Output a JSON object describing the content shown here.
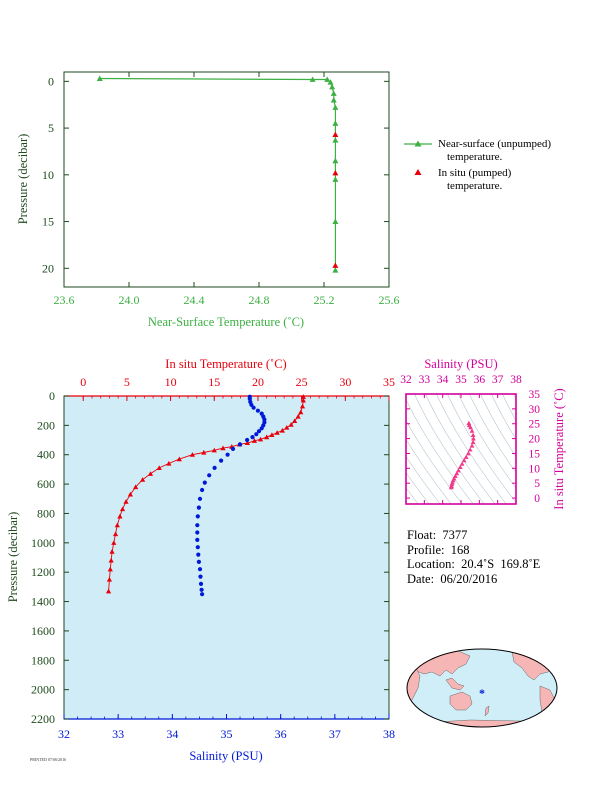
{
  "colors": {
    "green": "#3cb043",
    "red": "#e8000b",
    "blue": "#0018d8",
    "magenta": "#d4009a",
    "pink": "#f03a8a",
    "axis_dark": "#1e4a1e",
    "plot_bg": "#d0ecf6",
    "land": "#f7b6b6",
    "ocean": "#cfeef8"
  },
  "chart_data": [
    {
      "type": "line",
      "xlabel": "Near-Surface Temperature (˚C)",
      "ylabel": "Pressure (decibar)",
      "xlim": [
        23.6,
        25.6
      ],
      "ylim": [
        22,
        -1
      ],
      "xticks": [
        "23.6",
        "24.0",
        "24.4",
        "24.8",
        "25.2",
        "25.6"
      ],
      "yticks": [
        "0",
        "5",
        "10",
        "15",
        "20"
      ],
      "legend": [
        "Near-surface (unpumped) temperature.",
        "In situ (pumped) temperature."
      ],
      "series": [
        {
          "name": "Near-surface (unpumped) temperature.",
          "x": [
            23.82,
            25.13,
            25.22,
            25.24,
            25.25,
            25.26,
            25.26,
            25.27,
            25.27,
            25.27,
            25.27,
            25.27,
            25.27,
            25.27
          ],
          "y": [
            -0.3,
            -0.2,
            -0.2,
            0.1,
            0.6,
            1.3,
            2.0,
            2.8,
            4.5,
            6.3,
            8.5,
            10.5,
            15.0,
            20.2
          ]
        },
        {
          "name": "In situ (pumped) temperature.",
          "x": [
            25.27,
            25.27,
            25.27
          ],
          "y": [
            5.7,
            9.8,
            19.7
          ]
        }
      ]
    },
    {
      "type": "scatter",
      "ylabel": "Pressure (decibar)",
      "xlabel_bottom": "Salinity (PSU)",
      "xlabel_top": "In situ Temperature (˚C)",
      "ylim": [
        2200,
        0
      ],
      "salinity_xlim": [
        32,
        38
      ],
      "temperature_xlim": [
        -2.2,
        35
      ],
      "yticks": [
        "0",
        "200",
        "400",
        "600",
        "800",
        "1000",
        "1200",
        "1400",
        "1600",
        "1800",
        "2000",
        "2200"
      ],
      "salinity_ticks": [
        "32",
        "33",
        "34",
        "35",
        "36",
        "37",
        "38"
      ],
      "temperature_ticks": [
        "0",
        "5",
        "10",
        "15",
        "20",
        "25",
        "30",
        "35"
      ],
      "series": [
        {
          "name": "In situ Temperature (˚C)",
          "temperature": [
            25.2,
            25.2,
            25.1,
            24.9,
            24.6,
            24.2,
            23.8,
            23.3,
            22.8,
            22.2,
            21.6,
            21.0,
            20.3,
            19.6,
            18.8,
            17.9,
            17.0,
            16.0,
            15.0,
            13.8,
            12.5,
            11.0,
            9.8,
            8.7,
            7.7,
            6.8,
            6.0,
            5.4,
            4.9,
            4.5,
            4.2,
            3.9,
            3.7,
            3.5,
            3.3,
            3.2,
            3.1,
            3.0,
            2.9
          ],
          "pressure": [
            5,
            30,
            70,
            110,
            140,
            170,
            195,
            215,
            235,
            250,
            265,
            280,
            295,
            305,
            320,
            330,
            345,
            355,
            370,
            385,
            400,
            430,
            460,
            490,
            530,
            570,
            620,
            670,
            720,
            770,
            820,
            880,
            940,
            1000,
            1060,
            1120,
            1180,
            1250,
            1330
          ]
        },
        {
          "name": "Salinity (PSU)",
          "salinity": [
            35.43,
            35.43,
            35.44,
            35.46,
            35.5,
            35.58,
            35.65,
            35.68,
            35.7,
            35.7,
            35.68,
            35.65,
            35.6,
            35.55,
            35.48,
            35.38,
            35.25,
            35.12,
            35.02,
            34.9,
            34.78,
            34.68,
            34.6,
            34.55,
            34.51,
            34.49,
            34.47,
            34.46,
            34.46,
            34.46,
            34.47,
            34.48,
            34.49,
            34.51,
            34.52,
            34.53,
            34.54,
            34.55
          ],
          "pressure": [
            5,
            20,
            40,
            60,
            80,
            100,
            120,
            140,
            160,
            180,
            200,
            220,
            240,
            260,
            280,
            300,
            330,
            360,
            400,
            440,
            490,
            540,
            590,
            640,
            700,
            760,
            820,
            880,
            930,
            980,
            1030,
            1080,
            1130,
            1180,
            1230,
            1280,
            1320,
            1350
          ]
        }
      ]
    },
    {
      "type": "scatter",
      "xlabel": "Salinity (PSU)",
      "ylabel": "In situ Temperature (˚C)",
      "xlim": [
        32,
        38
      ],
      "ylim": [
        -2,
        35
      ],
      "xticks": [
        "32",
        "33",
        "34",
        "35",
        "36",
        "37",
        "38"
      ],
      "yticks": [
        "0",
        "5",
        "10",
        "15",
        "20",
        "25",
        "30",
        "35"
      ],
      "points": [
        [
          35.43,
          25.2
        ],
        [
          35.45,
          24.5
        ],
        [
          35.52,
          23.8
        ],
        [
          35.6,
          22.6
        ],
        [
          35.66,
          21.2
        ],
        [
          35.68,
          20.0
        ],
        [
          35.66,
          18.8
        ],
        [
          35.6,
          17.6
        ],
        [
          35.5,
          16.3
        ],
        [
          35.4,
          15.0
        ],
        [
          35.28,
          13.8
        ],
        [
          35.17,
          12.7
        ],
        [
          35.06,
          11.5
        ],
        [
          34.96,
          10.4
        ],
        [
          34.86,
          9.3
        ],
        [
          34.77,
          8.3
        ],
        [
          34.69,
          7.4
        ],
        [
          34.62,
          6.6
        ],
        [
          34.57,
          5.9
        ],
        [
          34.53,
          5.2
        ],
        [
          34.5,
          4.6
        ],
        [
          34.48,
          4.0
        ],
        [
          34.47,
          3.6
        ]
      ]
    }
  ],
  "map": {
    "marker_label": "*"
  },
  "float_info": {
    "float": "Float:  7377",
    "profile": "Profile:  168",
    "location": "Location:  20.4˚S  169.8˚E",
    "date": "Date:  06/20/2016"
  },
  "footer_text": "PRINTED 07/06/2016"
}
